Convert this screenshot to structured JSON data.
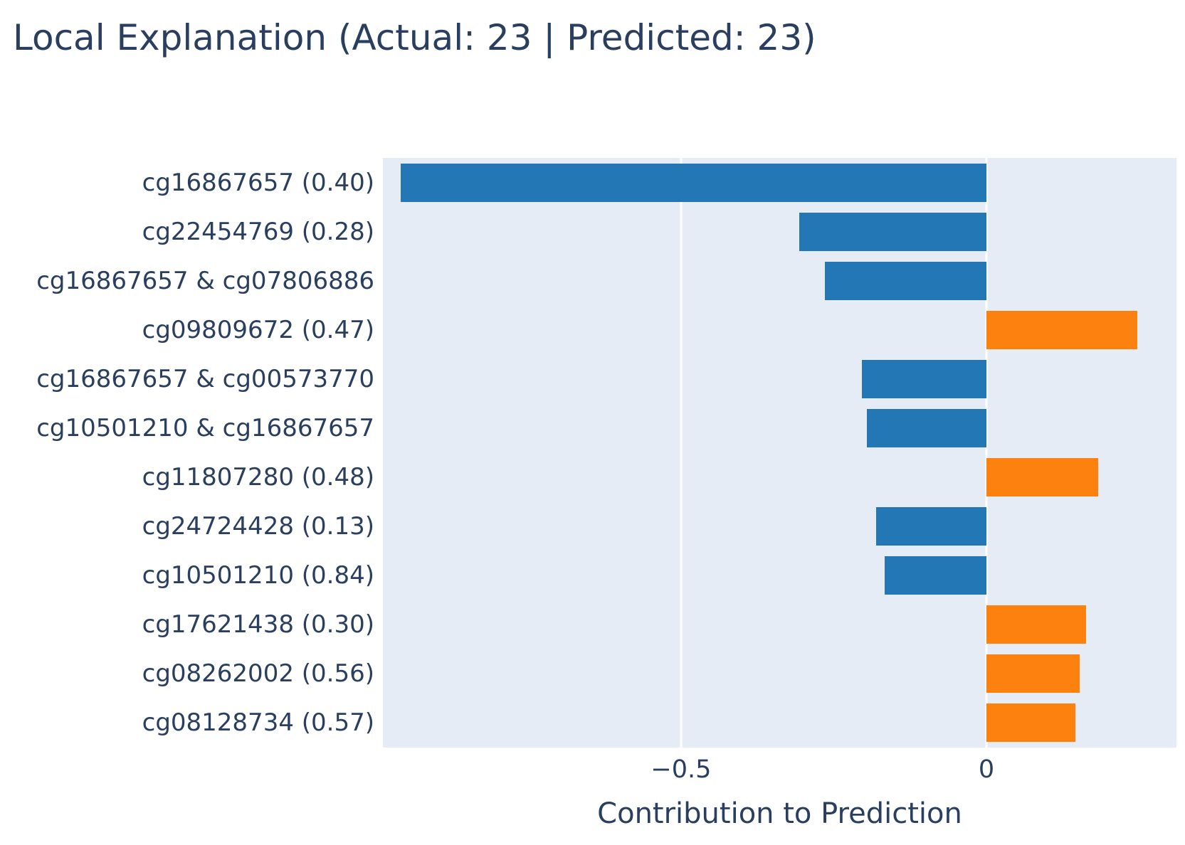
{
  "title": "Local Explanation (Actual: 23 | Predicted: 23)",
  "chart_data": {
    "type": "bar",
    "orientation": "horizontal",
    "title": "Local Explanation (Actual: 23 | Predicted: 23)",
    "xlabel": "Contribution to Prediction",
    "ylabel": "",
    "categories": [
      "cg16867657 (0.40)",
      "cg22454769 (0.28)",
      "cg16867657 & cg07806886",
      "cg09809672 (0.47)",
      "cg16867657 & cg00573770",
      "cg10501210 & cg16867657",
      "cg11807280 (0.48)",
      "cg24724428 (0.13)",
      "cg10501210 (0.84)",
      "cg17621438 (0.30)",
      "cg08262002 (0.56)",
      "cg08128734 (0.57)"
    ],
    "values": [
      -0.959,
      -0.307,
      -0.265,
      0.247,
      -0.204,
      -0.196,
      0.183,
      -0.181,
      -0.167,
      0.163,
      0.152,
      0.146
    ],
    "xlim": [
      -0.988,
      0.311
    ],
    "xticks": [
      {
        "value": -0.5,
        "label": "−0.5"
      },
      {
        "value": 0,
        "label": "0"
      }
    ],
    "grid": true,
    "legend": "none",
    "colors": {
      "negative_bar": "#2377b4",
      "positive_bar": "#fd810e",
      "plot_background": "#e5ecf6",
      "gridline": "#ffffff",
      "text": "#2a3f5f"
    }
  }
}
